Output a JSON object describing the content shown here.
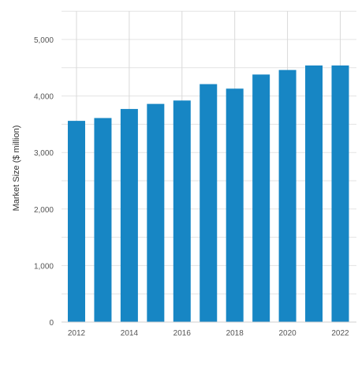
{
  "chart_data": {
    "type": "bar",
    "title": "",
    "xlabel": "",
    "ylabel": "Market Size ($ million)",
    "categories": [
      "2012",
      "2013",
      "2014",
      "2015",
      "2016",
      "2017",
      "2018",
      "2019",
      "2020",
      "2021",
      "2022"
    ],
    "x_tick_labels": [
      "2012",
      "2014",
      "2016",
      "2018",
      "2020",
      "2022"
    ],
    "values": [
      3560,
      3610,
      3770,
      3860,
      3920,
      4210,
      4130,
      4380,
      4460,
      4540,
      4540
    ],
    "ylim": [
      0,
      5000
    ],
    "y_ticks": [
      0,
      1000,
      2000,
      3000,
      4000,
      5000
    ],
    "y_tick_labels": [
      "0",
      "1,000",
      "2,000",
      "3,000",
      "4,000",
      "5,000"
    ],
    "grid": true,
    "legend": "none",
    "colors": {
      "bar": "#1786c4",
      "grid": "#e3e3e3",
      "vgrid": "#d9d9d9",
      "axis": "#cfcfcf",
      "tick_text": "#555555",
      "label_text": "#333333"
    }
  }
}
